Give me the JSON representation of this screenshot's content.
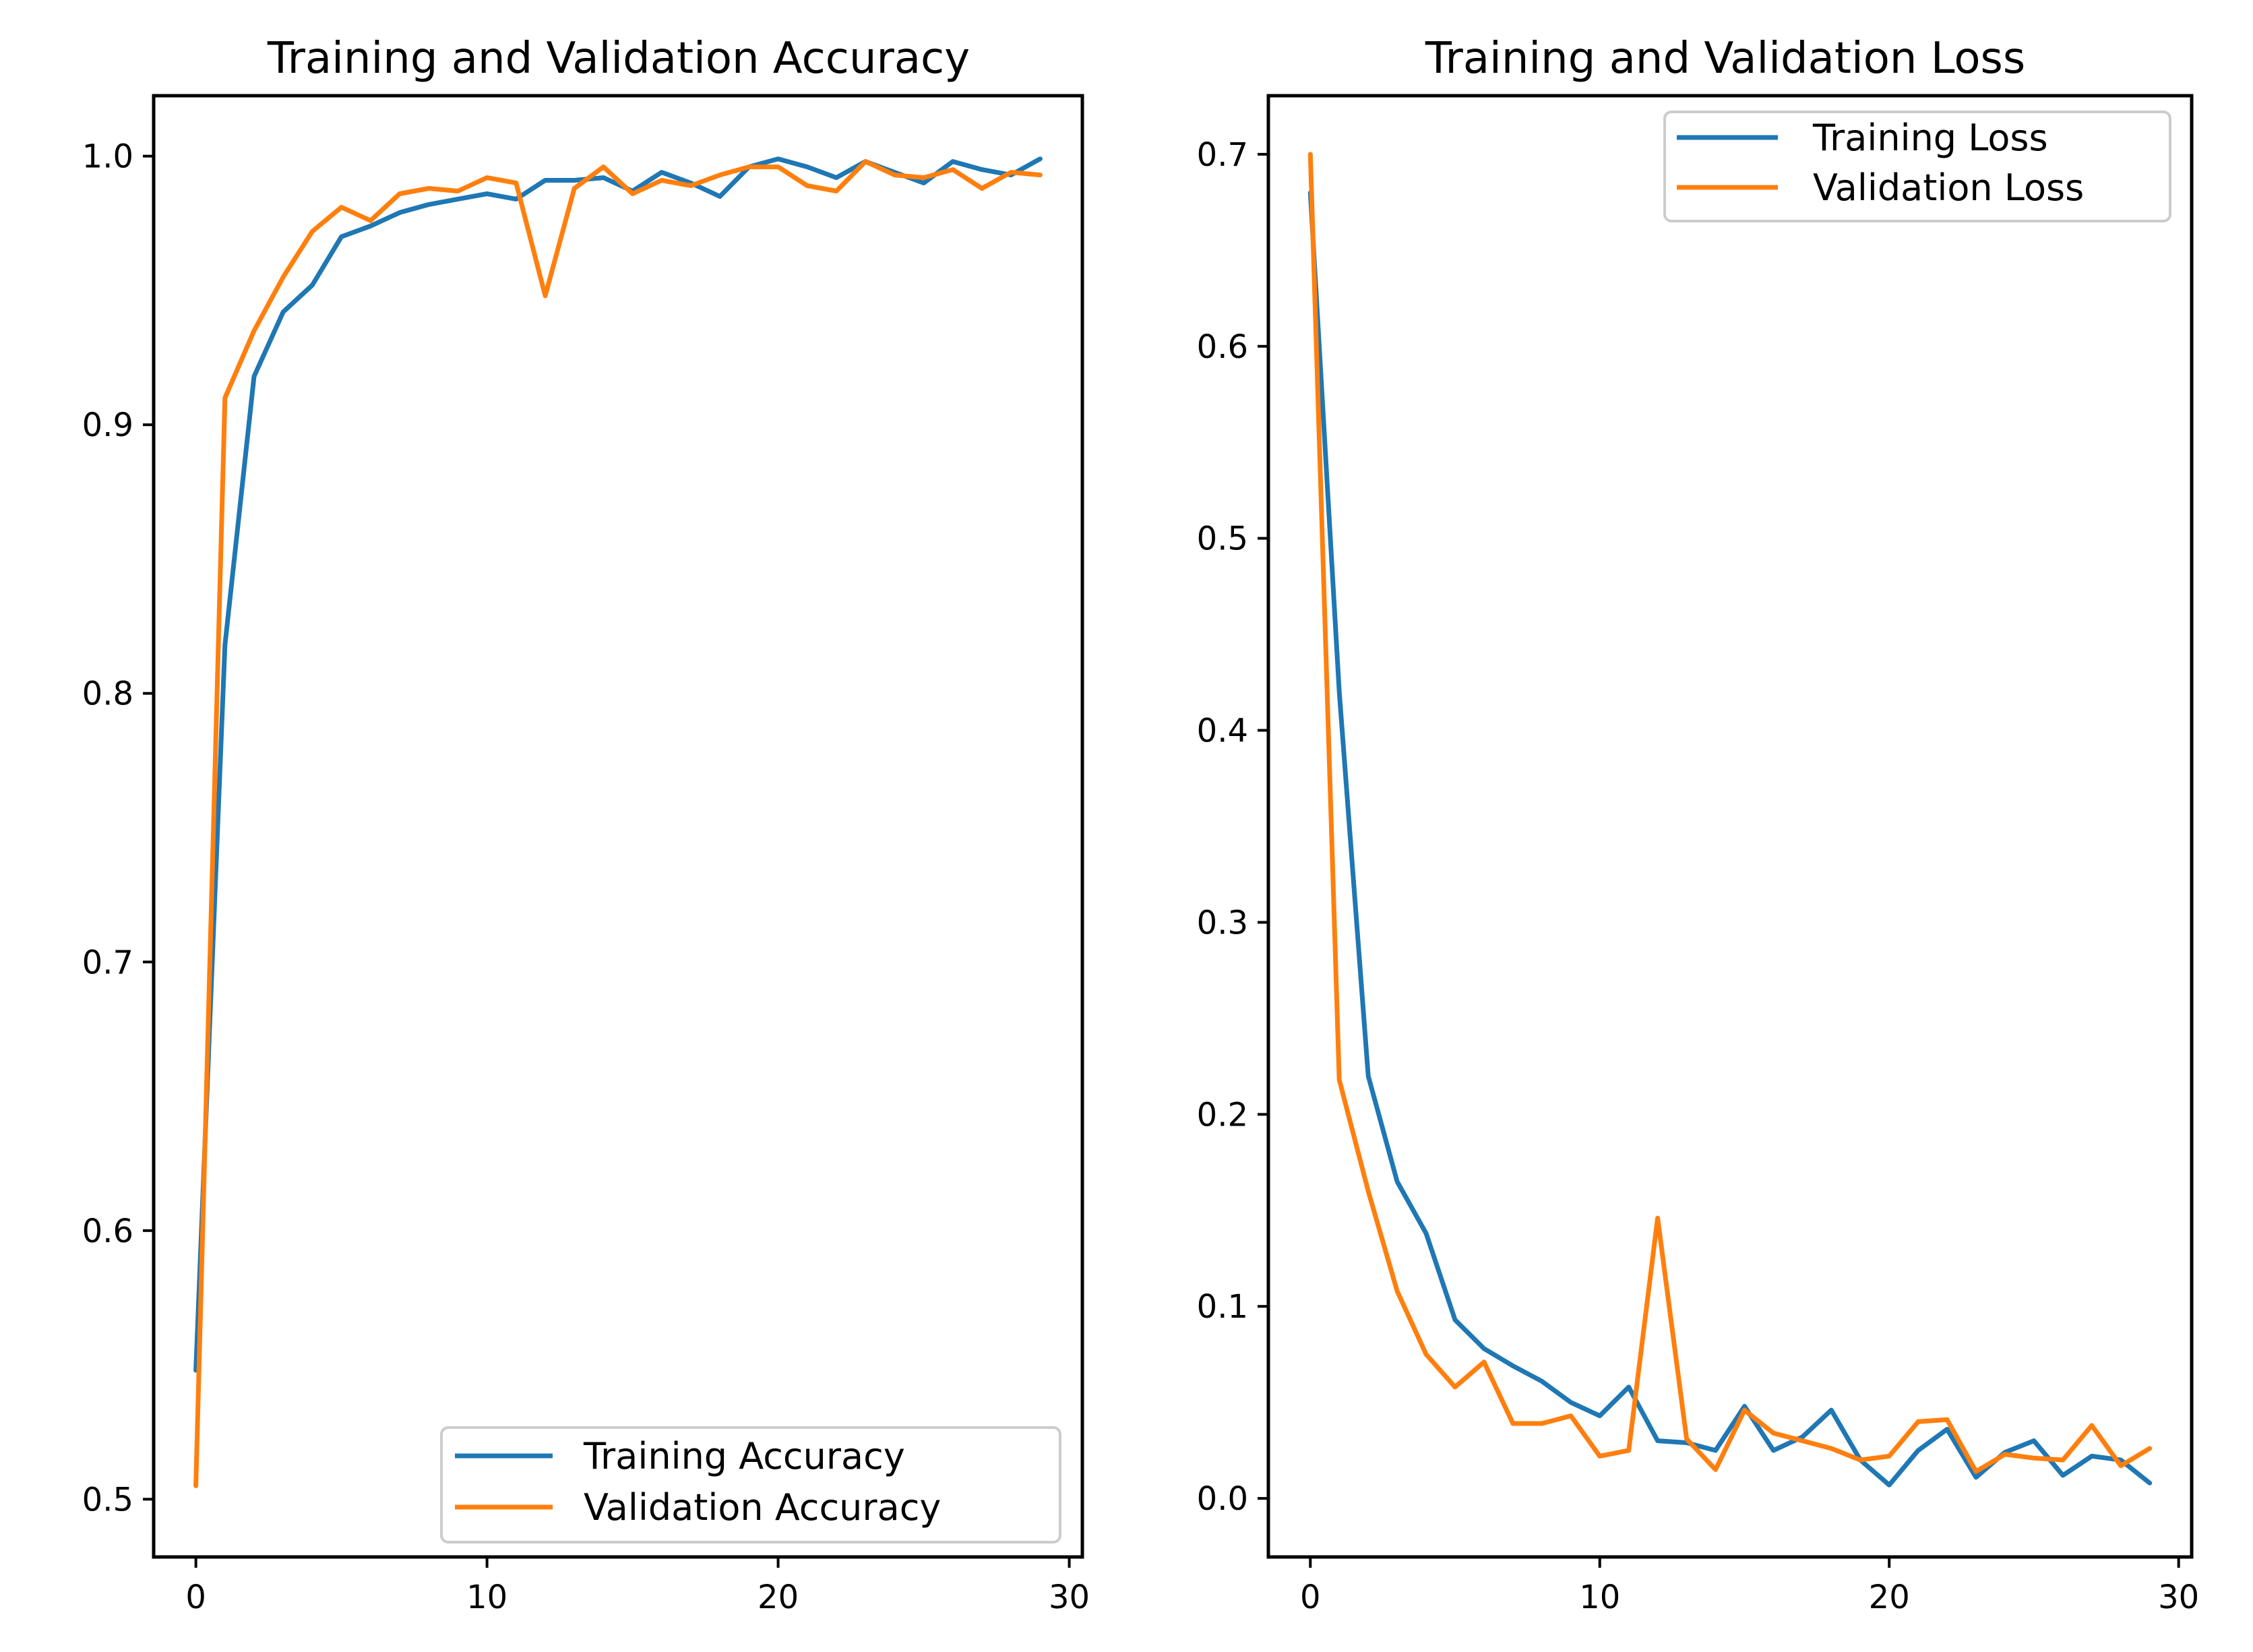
{
  "colors": {
    "training": "#1f77b4",
    "validation": "#ff7f0e"
  },
  "chart_data": [
    {
      "type": "line",
      "title": "Training and Validation Accuracy",
      "xlabel": "",
      "ylabel": "",
      "xlim": [
        -1.45,
        30.45
      ],
      "ylim": [
        0.4785,
        1.0225
      ],
      "xticks": [
        0,
        10,
        20,
        30
      ],
      "yticks": [
        0.5,
        0.6,
        0.7,
        0.8,
        0.9,
        1.0
      ],
      "ytick_labels": [
        "0.5",
        "0.6",
        "0.7",
        "0.8",
        "0.9",
        "1.0"
      ],
      "grid": false,
      "legend": "lower-right",
      "x": [
        0,
        1,
        2,
        3,
        4,
        5,
        6,
        7,
        8,
        9,
        10,
        11,
        12,
        13,
        14,
        15,
        16,
        17,
        18,
        19,
        20,
        21,
        22,
        23,
        24,
        25,
        26,
        27,
        28,
        29
      ],
      "series": [
        {
          "name": "Training Accuracy",
          "color_key": "training",
          "values": [
            0.548,
            0.818,
            0.918,
            0.942,
            0.952,
            0.97,
            0.974,
            0.979,
            0.982,
            0.984,
            0.986,
            0.984,
            0.991,
            0.991,
            0.992,
            0.987,
            0.994,
            0.99,
            0.985,
            0.996,
            0.999,
            0.996,
            0.992,
            0.998,
            0.994,
            0.99,
            0.998,
            0.995,
            0.993,
            0.999
          ]
        },
        {
          "name": "Validation Accuracy",
          "color_key": "validation",
          "values": [
            0.505,
            0.91,
            0.935,
            0.955,
            0.972,
            0.981,
            0.976,
            0.986,
            0.988,
            0.987,
            0.992,
            0.99,
            0.948,
            0.988,
            0.996,
            0.986,
            0.991,
            0.989,
            0.993,
            0.996,
            0.996,
            0.989,
            0.987,
            0.998,
            0.993,
            0.992,
            0.995,
            0.988,
            0.994,
            0.993
          ]
        }
      ]
    },
    {
      "type": "line",
      "title": "Training and Validation Loss",
      "xlabel": "",
      "ylabel": "",
      "xlim": [
        -1.45,
        30.45
      ],
      "ylim": [
        -0.0305,
        0.7305
      ],
      "xticks": [
        0,
        10,
        20,
        30
      ],
      "yticks": [
        0.0,
        0.1,
        0.2,
        0.3,
        0.4,
        0.5,
        0.6,
        0.7
      ],
      "ytick_labels": [
        "0.0",
        "0.1",
        "0.2",
        "0.3",
        "0.4",
        "0.5",
        "0.6",
        "0.7"
      ],
      "grid": false,
      "legend": "upper-right",
      "x": [
        0,
        1,
        2,
        3,
        4,
        5,
        6,
        7,
        8,
        9,
        10,
        11,
        12,
        13,
        14,
        15,
        16,
        17,
        18,
        19,
        20,
        21,
        22,
        23,
        24,
        25,
        26,
        27,
        28,
        29
      ],
      "series": [
        {
          "name": "Training Loss",
          "color_key": "training",
          "values": [
            0.68,
            0.42,
            0.22,
            0.165,
            0.138,
            0.093,
            0.078,
            0.069,
            0.061,
            0.05,
            0.043,
            0.058,
            0.03,
            0.029,
            0.025,
            0.048,
            0.025,
            0.032,
            0.046,
            0.02,
            0.007,
            0.025,
            0.036,
            0.011,
            0.024,
            0.03,
            0.012,
            0.022,
            0.02,
            0.008
          ]
        },
        {
          "name": "Validation Loss",
          "color_key": "validation",
          "values": [
            0.7,
            0.218,
            0.16,
            0.108,
            0.075,
            0.058,
            0.071,
            0.039,
            0.039,
            0.043,
            0.022,
            0.025,
            0.146,
            0.031,
            0.015,
            0.046,
            0.034,
            0.03,
            0.026,
            0.02,
            0.022,
            0.04,
            0.041,
            0.014,
            0.023,
            0.021,
            0.02,
            0.038,
            0.017,
            0.026
          ]
        }
      ]
    }
  ]
}
